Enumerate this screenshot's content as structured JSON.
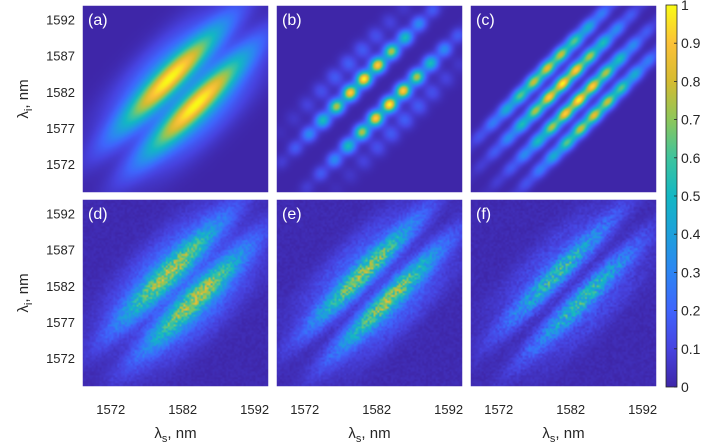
{
  "chart_data": {
    "type": "heatmap",
    "colormap": "parula",
    "colors": {
      "min": "#3e26a8",
      "mid": "#2fbeb0",
      "max": "#f9fb15",
      "axis_text": "#262626",
      "panel_label": "#ffffff"
    },
    "x_ticks": [
      "1572",
      "1582",
      "1592"
    ],
    "y_ticks": [
      "1592",
      "1587",
      "1582",
      "1577",
      "1572"
    ],
    "xlim": [
      1568,
      1594
    ],
    "ylim": [
      1568,
      1594
    ],
    "xlabel": {
      "symbol": "λ",
      "sub": "s",
      "suffix": ", nm"
    },
    "ylabel": {
      "symbol": "λ",
      "sub": "i",
      "suffix": ", nm"
    },
    "colorbar": {
      "range": [
        0,
        1
      ],
      "tick_labels": [
        "1",
        "0.9",
        "0.8",
        "0.7",
        "0.6",
        "0.5",
        "0.4",
        "0.3",
        "0.2",
        "0.1",
        "0"
      ]
    },
    "panels": [
      {
        "label": "(a)",
        "row": 0,
        "col": 0,
        "kind": "theory",
        "lobes": 2,
        "widthScale": 1.45,
        "fringe": 0,
        "noise": 0
      },
      {
        "label": "(b)",
        "row": 0,
        "col": 1,
        "kind": "theory",
        "lobes": 2,
        "widthScale": 0.75,
        "fringe": 1,
        "noise": 0
      },
      {
        "label": "(c)",
        "row": 0,
        "col": 2,
        "kind": "theory",
        "lobes": 4,
        "widthScale": 0.85,
        "fringe": 0.5,
        "noise": 0
      },
      {
        "label": "(d)",
        "row": 1,
        "col": 0,
        "kind": "experiment",
        "lobes": 2,
        "widthScale": 1.35,
        "fringe": 0,
        "noise": 0.35
      },
      {
        "label": "(e)",
        "row": 1,
        "col": 1,
        "kind": "experiment",
        "lobes": 2,
        "widthScale": 1.15,
        "fringe": 0,
        "noise": 0.4
      },
      {
        "label": "(f)",
        "row": 1,
        "col": 2,
        "kind": "experiment",
        "lobes": 2,
        "widthScale": 1.1,
        "fringe": 0,
        "noise": 0.55
      }
    ]
  }
}
